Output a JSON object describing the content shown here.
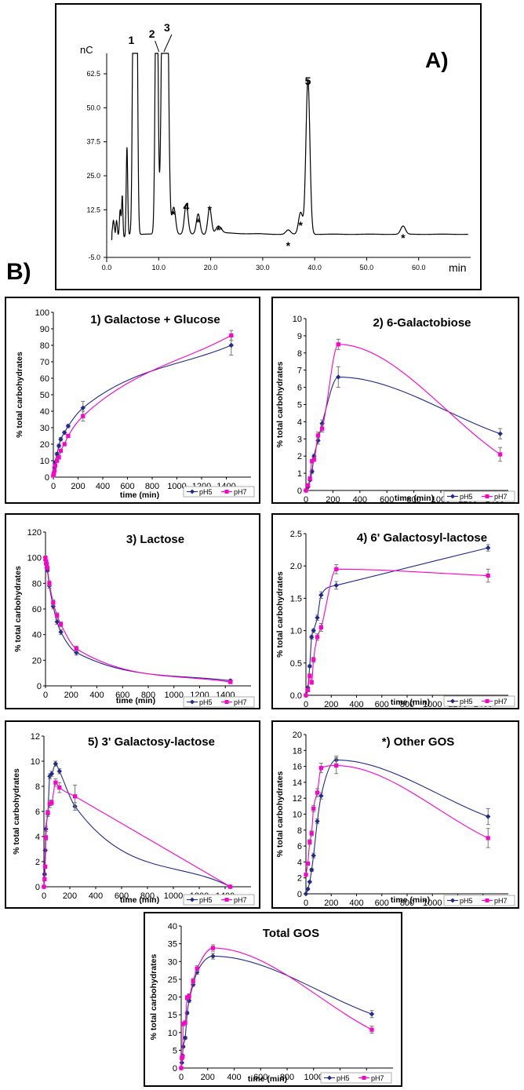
{
  "figure": {
    "panel_a_label": "A)",
    "panel_b_label": "B)",
    "asterisk": "*"
  },
  "chart_data": [
    {
      "id": "chromatogram",
      "type": "line",
      "ylabel": "nC",
      "xlabel": "min",
      "xlim": [
        0,
        70
      ],
      "ylim": [
        -5,
        70
      ],
      "xticks": [
        "0.0",
        "10.0",
        "20.0",
        "30.0",
        "40.0",
        "50.0",
        "60.0"
      ],
      "yticks": [
        "-5.0",
        "12.5",
        "25.0",
        "37.5",
        "50.0",
        "62.5"
      ],
      "panel_label": "A)",
      "peak_labels": [
        {
          "label": "1",
          "x": 5.5
        },
        {
          "label": "2",
          "x": 9.6
        },
        {
          "label": "3",
          "x": 11.0
        },
        {
          "label": "4",
          "x": 15.3
        },
        {
          "label": "5",
          "x": 38.7
        }
      ],
      "asterisk_peaks_x": [
        12.8,
        17.6,
        19.8,
        21.5,
        34.9,
        37.3,
        57.0
      ],
      "baseline": 3.5,
      "trace_peaks": [
        {
          "x": 1.3,
          "h": 5,
          "w": 0.15
        },
        {
          "x": 1.9,
          "h": 6,
          "w": 0.15
        },
        {
          "x": 2.6,
          "h": 10,
          "w": 0.15
        },
        {
          "x": 3.0,
          "h": 15,
          "w": 0.12
        },
        {
          "x": 3.9,
          "h": 32,
          "w": 0.14
        },
        {
          "x": 5.2,
          "h": 120,
          "w": 0.22
        },
        {
          "x": 5.7,
          "h": 120,
          "w": 0.22
        },
        {
          "x": 9.6,
          "h": 120,
          "w": 0.25
        },
        {
          "x": 10.9,
          "h": 120,
          "w": 0.35
        },
        {
          "x": 11.5,
          "h": 120,
          "w": 0.35
        },
        {
          "x": 12.9,
          "h": 10,
          "w": 0.35
        },
        {
          "x": 15.3,
          "h": 11,
          "w": 0.35
        },
        {
          "x": 17.6,
          "h": 7.5,
          "w": 0.35
        },
        {
          "x": 19.8,
          "h": 9.8,
          "w": 0.35
        },
        {
          "x": 21.5,
          "h": 3.0,
          "w": 0.5
        },
        {
          "x": 34.9,
          "h": 1.6,
          "w": 0.45
        },
        {
          "x": 37.3,
          "h": 8,
          "w": 0.4
        },
        {
          "x": 38.7,
          "h": 57,
          "w": 0.38
        },
        {
          "x": 57.0,
          "h": 3.0,
          "w": 0.45
        }
      ]
    },
    {
      "id": "galactose-glucose",
      "type": "line",
      "title": "1) Galactose + Glucose",
      "xlabel": "time (min)",
      "ylabel": "% total carbohydrates",
      "xlim": [
        0,
        1600
      ],
      "ylim": [
        0,
        100
      ],
      "xticks": [
        0,
        200,
        400,
        600,
        800,
        1000,
        1200,
        1400
      ],
      "yticks": [
        0,
        10,
        20,
        30,
        40,
        50,
        60,
        70,
        80,
        90,
        100
      ],
      "legend_position": "bottom-right",
      "series": [
        {
          "name": "pH5",
          "color": "#1f2a8c",
          "marker": "diamond",
          "x": [
            0,
            5,
            10,
            15,
            30,
            45,
            60,
            90,
            120,
            240,
            1440
          ],
          "y": [
            1,
            3,
            6,
            9,
            14,
            19,
            23,
            27,
            31,
            42,
            80
          ],
          "err": [
            0,
            0,
            0,
            0,
            1,
            1,
            1,
            1,
            1,
            4,
            6
          ]
        },
        {
          "name": "pH7",
          "color": "#ff00cc",
          "marker": "square",
          "x": [
            0,
            5,
            10,
            15,
            30,
            45,
            60,
            90,
            120,
            240,
            1440
          ],
          "y": [
            1,
            2,
            4,
            7,
            10,
            12,
            16,
            20,
            25,
            37,
            86
          ],
          "err": [
            0,
            0,
            0,
            0,
            1,
            1,
            1,
            1,
            1,
            3,
            3
          ]
        }
      ]
    },
    {
      "id": "galactobiose",
      "type": "line",
      "title": "2) 6-Galactobiose",
      "xlabel": "time (min)",
      "ylabel": "% total carbohydrates",
      "xlim": [
        0,
        1500
      ],
      "ylim": [
        0,
        10
      ],
      "xticks": [
        0,
        200,
        400,
        600,
        800,
        1000,
        1200,
        1400
      ],
      "yticks": [
        0,
        1,
        2,
        3,
        4,
        5,
        6,
        7,
        8,
        9,
        10
      ],
      "legend_position": "bottom-right",
      "series": [
        {
          "name": "pH5",
          "color": "#1f2a8c",
          "marker": "diamond",
          "x": [
            0,
            15,
            30,
            45,
            60,
            90,
            120,
            240,
            1440
          ],
          "y": [
            0,
            0.2,
            0.6,
            1.1,
            2.0,
            2.9,
            3.9,
            6.6,
            3.3
          ],
          "err": [
            0,
            0,
            0,
            0.1,
            0.1,
            0.2,
            0.2,
            0.6,
            0.3
          ]
        },
        {
          "name": "pH7",
          "color": "#ff00cc",
          "marker": "square",
          "x": [
            0,
            15,
            30,
            45,
            60,
            90,
            120,
            240,
            1440
          ],
          "y": [
            0,
            0.3,
            0.7,
            1.7,
            1.8,
            3.2,
            3.6,
            8.5,
            2.1
          ],
          "err": [
            0,
            0,
            0,
            0.1,
            0.1,
            0.2,
            0.2,
            0.3,
            0.4
          ]
        }
      ]
    },
    {
      "id": "lactose",
      "type": "line",
      "title": "3) Lactose",
      "xlabel": "time (min)",
      "ylabel": "% total carbohydrates",
      "xlim": [
        0,
        1600
      ],
      "ylim": [
        0,
        120
      ],
      "xticks": [
        0,
        200,
        400,
        600,
        800,
        1000,
        1200,
        1400
      ],
      "yticks": [
        0,
        20,
        40,
        60,
        80,
        100,
        120
      ],
      "legend_position": "bottom-right",
      "series": [
        {
          "name": "pH5",
          "color": "#1f2a8c",
          "marker": "diamond",
          "x": [
            0,
            5,
            10,
            15,
            30,
            60,
            90,
            120,
            240,
            1440
          ],
          "y": [
            98,
            95,
            92,
            90,
            78,
            62,
            50,
            42,
            26,
            4
          ],
          "err": [
            0,
            1,
            1,
            1,
            2,
            2,
            2,
            2,
            2,
            1
          ]
        },
        {
          "name": "pH7",
          "color": "#ff00cc",
          "marker": "square",
          "x": [
            0,
            5,
            10,
            15,
            30,
            60,
            90,
            120,
            240,
            1440
          ],
          "y": [
            100,
            97,
            95,
            92,
            80,
            65,
            55,
            48,
            29,
            3
          ],
          "err": [
            0,
            1,
            1,
            1,
            2,
            2,
            2,
            2,
            2,
            1
          ]
        }
      ]
    },
    {
      "id": "galactosyl-lactose-6",
      "type": "line",
      "title": "4) 6' Galactosyl-lactose",
      "xlabel": "time (min)",
      "ylabel": "% total carbohydrates",
      "xlim": [
        0,
        1600
      ],
      "ylim": [
        0,
        2.5
      ],
      "xticks": [
        0,
        200,
        400,
        600,
        800,
        1000,
        1200,
        1400
      ],
      "yticks": [
        "0.0",
        "0.5",
        "1.0",
        "1.5",
        "2.0",
        "2.5"
      ],
      "legend_position": "bottom-right",
      "series": [
        {
          "name": "pH5",
          "color": "#1f2a8c",
          "marker": "diamond",
          "x": [
            0,
            15,
            30,
            45,
            60,
            90,
            120,
            240,
            1440
          ],
          "y": [
            0,
            0.12,
            0.45,
            0.9,
            1.0,
            1.2,
            1.55,
            1.7,
            2.28
          ],
          "err": [
            0,
            0,
            0.02,
            0.03,
            0.03,
            0.04,
            0.05,
            0.06,
            0.05
          ]
        },
        {
          "name": "pH7",
          "color": "#ff00cc",
          "marker": "square",
          "x": [
            0,
            15,
            30,
            45,
            60,
            90,
            120,
            240,
            1440
          ],
          "y": [
            0,
            0.08,
            0.3,
            0.2,
            0.55,
            0.9,
            1.05,
            1.95,
            1.85
          ],
          "err": [
            0,
            0,
            0.03,
            0.03,
            0.04,
            0.05,
            0.06,
            0.07,
            0.1
          ]
        }
      ]
    },
    {
      "id": "galactosy-lactose-3",
      "type": "line",
      "title": "5) 3' Galactosy-lactose",
      "xlabel": "time (min)",
      "ylabel": "% total carbohydrates",
      "xlim": [
        0,
        1600
      ],
      "ylim": [
        0,
        12
      ],
      "xticks": [
        0,
        200,
        400,
        600,
        800,
        1000,
        1200,
        1400
      ],
      "yticks": [
        0,
        2,
        4,
        6,
        8,
        10,
        12
      ],
      "legend_position": "bottom-right",
      "series": [
        {
          "name": "pH5",
          "color": "#1f2a8c",
          "marker": "diamond",
          "x": [
            0,
            5,
            10,
            15,
            30,
            45,
            60,
            90,
            120,
            240,
            1440
          ],
          "y": [
            0,
            1.0,
            2.9,
            4.6,
            5.8,
            8.8,
            9.0,
            9.8,
            9.2,
            6.4,
            0
          ],
          "err": [
            0,
            0.1,
            0.1,
            0.2,
            0.2,
            0.2,
            0.2,
            0.2,
            0.2,
            0.3,
            0
          ]
        },
        {
          "name": "pH7",
          "color": "#ff00cc",
          "marker": "square",
          "x": [
            0,
            5,
            10,
            15,
            30,
            45,
            60,
            90,
            120,
            240,
            1440
          ],
          "y": [
            0,
            0.6,
            1.6,
            3.9,
            5.9,
            6.6,
            6.7,
            8.3,
            7.9,
            7.2,
            0
          ],
          "err": [
            0,
            0.1,
            0.1,
            0.2,
            0.2,
            0.3,
            0.2,
            0.3,
            0.4,
            0.9,
            0
          ]
        }
      ]
    },
    {
      "id": "other-gos",
      "type": "line",
      "title": "*) Other GOS",
      "xlabel": "time (min)",
      "ylabel": "% total carbohydrates",
      "xlim": [
        0,
        1600
      ],
      "ylim": [
        0,
        20
      ],
      "xticks": [
        0,
        200,
        400,
        600,
        800,
        1000,
        1200,
        1400
      ],
      "yticks": [
        0,
        2,
        4,
        6,
        8,
        10,
        12,
        14,
        16,
        18,
        20
      ],
      "legend_position": "bottom-right",
      "series": [
        {
          "name": "pH5",
          "color": "#1f2a8c",
          "marker": "diamond",
          "x": [
            0,
            15,
            30,
            45,
            60,
            90,
            120,
            240,
            1440
          ],
          "y": [
            0,
            0.6,
            1.5,
            3.0,
            4.8,
            9.1,
            12.3,
            16.8,
            9.7
          ],
          "err": [
            0,
            0.1,
            0.1,
            0.2,
            0.3,
            0.3,
            0.4,
            0.5,
            1.0
          ]
        },
        {
          "name": "pH7",
          "color": "#ff00cc",
          "marker": "square",
          "x": [
            0,
            15,
            30,
            45,
            60,
            90,
            120,
            240,
            1440
          ],
          "y": [
            2.4,
            3.8,
            6.5,
            7.6,
            10.7,
            12.7,
            15.8,
            16.1,
            7.0
          ],
          "err": [
            0,
            0.2,
            0.3,
            0.3,
            0.4,
            0.5,
            0.6,
            1.0,
            1.2
          ]
        }
      ]
    },
    {
      "id": "total-gos",
      "type": "line",
      "title": "Total GOS",
      "xlabel": "time (min)",
      "ylabel": "% total carbohydrates",
      "xlim": [
        0,
        1600
      ],
      "ylim": [
        0,
        40
      ],
      "xticks": [
        0,
        200,
        400,
        600,
        800,
        1000,
        1200,
        1400
      ],
      "yticks": [
        0,
        5,
        10,
        15,
        20,
        25,
        30,
        35,
        40
      ],
      "legend_position": "bottom-right",
      "series": [
        {
          "name": "pH5",
          "color": "#1f2a8c",
          "marker": "diamond",
          "x": [
            0,
            5,
            10,
            15,
            30,
            45,
            60,
            90,
            120,
            240,
            1440
          ],
          "y": [
            0,
            1.5,
            3.5,
            6.0,
            8.5,
            15.5,
            19.0,
            23.5,
            27.0,
            31.5,
            15.2
          ],
          "err": [
            0,
            0.2,
            0.3,
            0.3,
            0.4,
            0.4,
            0.5,
            0.5,
            0.6,
            0.8,
            1.0
          ]
        },
        {
          "name": "pH7",
          "color": "#ff00cc",
          "marker": "square",
          "x": [
            0,
            5,
            10,
            15,
            30,
            45,
            60,
            90,
            120,
            240,
            1440
          ],
          "y": [
            0,
            2.8,
            3.2,
            12.4,
            12.8,
            19.8,
            20.3,
            24.5,
            28.0,
            33.8,
            10.8
          ],
          "err": [
            0,
            0.3,
            0.3,
            0.5,
            0.5,
            0.6,
            0.6,
            0.7,
            0.8,
            0.9,
            1.0
          ]
        }
      ]
    }
  ]
}
